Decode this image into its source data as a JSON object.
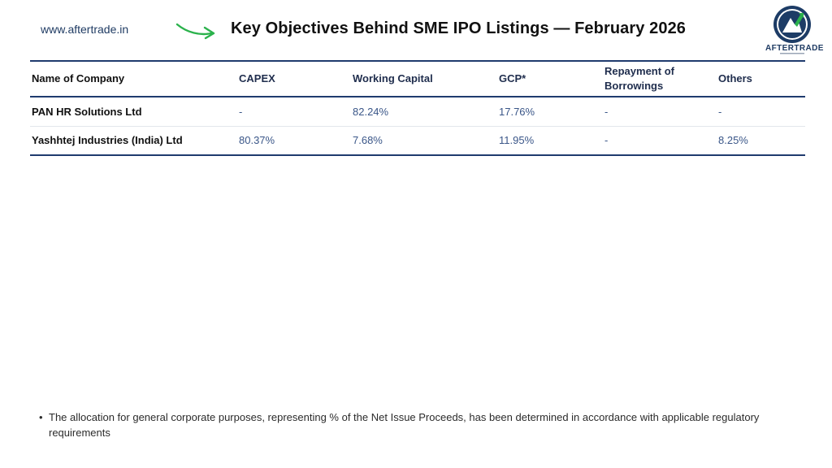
{
  "header": {
    "site_url": "www.aftertrade.in",
    "title": "Key Objectives Behind SME IPO Listings — February 2026",
    "logo_text": "AFTERTRADE",
    "arrow_icon": "arrow-right-icon",
    "accent_color": "#2bb24c",
    "brand_color": "#1f3b63"
  },
  "table": {
    "columns": [
      "Name of Company",
      "CAPEX",
      "Working Capital",
      "GCP*",
      "Repayment of Borrowings",
      "Others"
    ],
    "rows": [
      [
        "PAN HR Solutions Ltd",
        "-",
        "82.24%",
        "17.76%",
        "-",
        "-"
      ],
      [
        "Yashhtej Industries (India) Ltd",
        "80.37%",
        "7.68%",
        "11.95%",
        "-",
        "8.25%"
      ]
    ]
  },
  "footnote": {
    "bullet": "•",
    "text": "The allocation for general corporate purposes, representing % of the Net Issue Proceeds, has been determined in accordance with applicable regulatory requirements"
  }
}
